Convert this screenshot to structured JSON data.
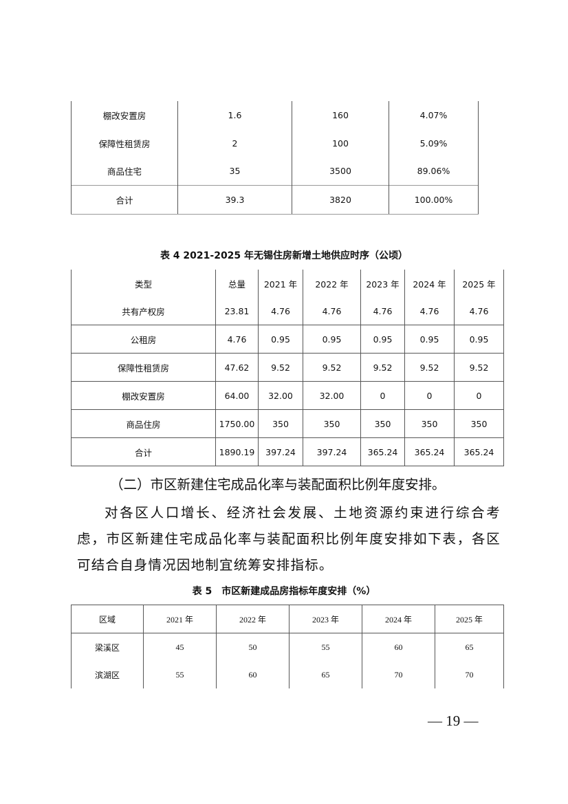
{
  "table3_continued": {
    "rows": [
      [
        "棚改安置房",
        "1.6",
        "160",
        "4.07%"
      ],
      [
        "保障性租赁房",
        "2",
        "100",
        "5.09%"
      ],
      [
        "商品住宅",
        "35",
        "3500",
        "89.06%"
      ]
    ],
    "total": [
      "合计",
      "39.3",
      "3820",
      "100.00%"
    ]
  },
  "table4": {
    "caption": "表 4 2021-2025 年无锡住房新增土地供应时序（公顷）",
    "headers": [
      "类型",
      "总量",
      "2021 年",
      "2022 年",
      "2023 年",
      "2024 年",
      "2025 年"
    ],
    "rows": [
      [
        "共有产权房",
        "23.81",
        "4.76",
        "4.76",
        "4.76",
        "4.76",
        "4.76"
      ],
      [
        "公租房",
        "4.76",
        "0.95",
        "0.95",
        "0.95",
        "0.95",
        "0.95"
      ],
      [
        "保障性租赁房",
        "47.62",
        "9.52",
        "9.52",
        "9.52",
        "9.52",
        "9.52"
      ],
      [
        "棚改安置房",
        "64.00",
        "32.00",
        "32.00",
        "0",
        "0",
        "0"
      ],
      [
        "商品住房",
        "1750.00",
        "350",
        "350",
        "350",
        "350",
        "350"
      ],
      [
        "合计",
        "1890.19",
        "397.24",
        "397.24",
        "365.24",
        "365.24",
        "365.24"
      ]
    ]
  },
  "section": {
    "heading": "（二）市区新建住宅成品化率与装配面积比例年度安排。",
    "paragraph": "对各区人口增长、经济社会发展、土地资源约束进行综合考虑，市区新建住宅成品化率与装配面积比例年度安排如下表，各区可结合自身情况因地制宜统筹安排指标。"
  },
  "table5": {
    "caption": "表 5　市区新建成品房指标年度安排（%）",
    "headers": [
      "区域",
      "2021 年",
      "2022 年",
      "2023 年",
      "2024 年",
      "2025 年"
    ],
    "rows": [
      [
        "梁溪区",
        "45",
        "50",
        "55",
        "60",
        "65"
      ],
      [
        "滨湖区",
        "55",
        "60",
        "65",
        "70",
        "70"
      ]
    ]
  },
  "page_number": "— 19 —"
}
